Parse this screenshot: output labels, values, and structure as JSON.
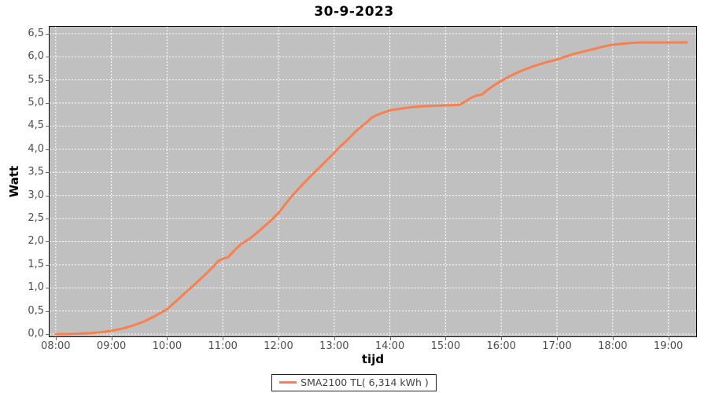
{
  "title": "30-9-2023",
  "axes": {
    "y_label": "Watt",
    "x_label": "tijd"
  },
  "legend": {
    "series_label": "SMA2100 TL( 6,314 kWh )"
  },
  "colors": {
    "series": "#f9804e",
    "plot_bg": "#c0c0c0",
    "grid": "#ffffff",
    "tick_text": "#4d4d4d",
    "title_text": "#000000",
    "legend_border": "#222222"
  },
  "chart_data": {
    "type": "line",
    "title": "30-9-2023",
    "xlabel": "tijd",
    "ylabel": "Watt",
    "grid": true,
    "legend_position": "bottom",
    "xlim_hours": [
      7.89,
      19.5
    ],
    "ylim": [
      -0.05,
      6.65
    ],
    "x_ticks": [
      {
        "hour": 8,
        "label": "08:00"
      },
      {
        "hour": 9,
        "label": "09:00"
      },
      {
        "hour": 10,
        "label": "10:00"
      },
      {
        "hour": 11,
        "label": "11:00"
      },
      {
        "hour": 12,
        "label": "12:00"
      },
      {
        "hour": 13,
        "label": "13:00"
      },
      {
        "hour": 14,
        "label": "14:00"
      },
      {
        "hour": 15,
        "label": "15:00"
      },
      {
        "hour": 16,
        "label": "16:00"
      },
      {
        "hour": 17,
        "label": "17:00"
      },
      {
        "hour": 18,
        "label": "18:00"
      },
      {
        "hour": 19,
        "label": "19:00"
      }
    ],
    "y_ticks": [
      {
        "value": 0.0,
        "label": "0,0"
      },
      {
        "value": 0.5,
        "label": "0,5"
      },
      {
        "value": 1.0,
        "label": "1,0"
      },
      {
        "value": 1.5,
        "label": "1,5"
      },
      {
        "value": 2.0,
        "label": "2,0"
      },
      {
        "value": 2.5,
        "label": "2,5"
      },
      {
        "value": 3.0,
        "label": "3,0"
      },
      {
        "value": 3.5,
        "label": "3,5"
      },
      {
        "value": 4.0,
        "label": "4,0"
      },
      {
        "value": 4.5,
        "label": "4,5"
      },
      {
        "value": 5.0,
        "label": "5,0"
      },
      {
        "value": 5.5,
        "label": "5,5"
      },
      {
        "value": 6.0,
        "label": "6,0"
      },
      {
        "value": 6.5,
        "label": "6,5"
      }
    ],
    "series": [
      {
        "name": "SMA2100 TL( 6,314 kWh )",
        "color": "#f9804e",
        "total_kwh_label": "6,314 kWh",
        "points": [
          [
            8.0,
            0.0
          ],
          [
            8.2,
            0.0
          ],
          [
            8.4,
            0.01
          ],
          [
            8.6,
            0.02
          ],
          [
            8.8,
            0.04
          ],
          [
            9.0,
            0.07
          ],
          [
            9.2,
            0.12
          ],
          [
            9.4,
            0.19
          ],
          [
            9.6,
            0.28
          ],
          [
            9.8,
            0.4
          ],
          [
            10.0,
            0.54
          ],
          [
            10.17,
            0.72
          ],
          [
            10.33,
            0.9
          ],
          [
            10.5,
            1.08
          ],
          [
            10.67,
            1.27
          ],
          [
            10.83,
            1.46
          ],
          [
            10.92,
            1.58
          ],
          [
            11.0,
            1.63
          ],
          [
            11.1,
            1.67
          ],
          [
            11.2,
            1.8
          ],
          [
            11.33,
            1.95
          ],
          [
            11.5,
            2.08
          ],
          [
            11.67,
            2.25
          ],
          [
            11.83,
            2.42
          ],
          [
            12.0,
            2.62
          ],
          [
            12.13,
            2.82
          ],
          [
            12.25,
            3.0
          ],
          [
            12.42,
            3.22
          ],
          [
            12.58,
            3.42
          ],
          [
            12.75,
            3.62
          ],
          [
            12.9,
            3.8
          ],
          [
            13.0,
            3.92
          ],
          [
            13.1,
            4.05
          ],
          [
            13.2,
            4.16
          ],
          [
            13.3,
            4.28
          ],
          [
            13.42,
            4.42
          ],
          [
            13.5,
            4.5
          ],
          [
            13.6,
            4.6
          ],
          [
            13.67,
            4.68
          ],
          [
            13.75,
            4.73
          ],
          [
            13.85,
            4.78
          ],
          [
            14.0,
            4.84
          ],
          [
            14.2,
            4.88
          ],
          [
            14.4,
            4.91
          ],
          [
            14.6,
            4.93
          ],
          [
            14.8,
            4.94
          ],
          [
            15.0,
            4.95
          ],
          [
            15.25,
            4.96
          ],
          [
            15.35,
            5.03
          ],
          [
            15.45,
            5.11
          ],
          [
            15.55,
            5.16
          ],
          [
            15.65,
            5.18
          ],
          [
            15.75,
            5.28
          ],
          [
            15.88,
            5.39
          ],
          [
            16.0,
            5.48
          ],
          [
            16.17,
            5.59
          ],
          [
            16.33,
            5.68
          ],
          [
            16.5,
            5.76
          ],
          [
            16.67,
            5.83
          ],
          [
            16.83,
            5.89
          ],
          [
            17.0,
            5.94
          ],
          [
            17.17,
            6.01
          ],
          [
            17.33,
            6.07
          ],
          [
            17.5,
            6.12
          ],
          [
            17.67,
            6.17
          ],
          [
            17.83,
            6.22
          ],
          [
            18.0,
            6.26
          ],
          [
            18.17,
            6.28
          ],
          [
            18.33,
            6.3
          ],
          [
            18.5,
            6.31
          ],
          [
            18.75,
            6.31
          ],
          [
            19.0,
            6.31
          ],
          [
            19.33,
            6.31
          ]
        ]
      }
    ]
  }
}
